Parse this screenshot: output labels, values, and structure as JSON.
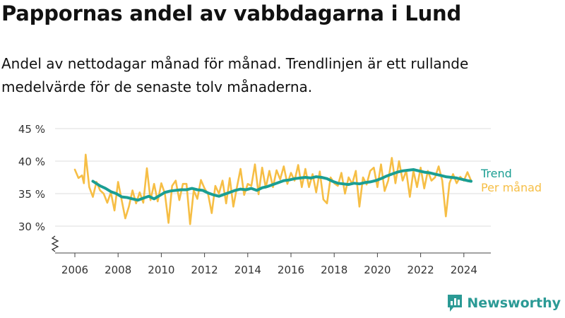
{
  "title": "Pappornas andel av vabbdagarna i Lund",
  "subtitle": "Andel av nettodagar månad för månad. Trendlinjen är ett rullande medelvärde för de senaste tolv månaderna.",
  "brand": "Newsworthy",
  "colors": {
    "monthly": "#f6be45",
    "trend": "#1a9e93",
    "grid": "#dddddd",
    "text": "#333333",
    "brand": "#2b9a95"
  },
  "chart_data": {
    "type": "line",
    "x_axis": {
      "ticks": [
        "2006",
        "2008",
        "2010",
        "2012",
        "2014",
        "2016",
        "2018",
        "2020",
        "2022",
        "2024"
      ]
    },
    "y_axis": {
      "ticks": [
        "30 %",
        "35 %",
        "40 %",
        "45 %"
      ],
      "range": [
        30,
        45
      ],
      "broken_axis": true
    },
    "grid": true,
    "legend": {
      "position": "right-end",
      "labels": [
        "Trend",
        "Per månad"
      ]
    },
    "series": [
      {
        "name": "Per månad",
        "x": [
          "2006-01",
          "2006-03",
          "2006-05",
          "2006-06",
          "2006-07",
          "2006-09",
          "2006-11",
          "2007-01",
          "2007-03",
          "2007-05",
          "2007-07",
          "2007-09",
          "2007-11",
          "2008-01",
          "2008-03",
          "2008-05",
          "2008-07",
          "2008-09",
          "2008-11",
          "2009-01",
          "2009-03",
          "2009-05",
          "2009-07",
          "2009-09",
          "2009-11",
          "2010-01",
          "2010-03",
          "2010-05",
          "2010-07",
          "2010-09",
          "2010-11",
          "2011-01",
          "2011-03",
          "2011-05",
          "2011-07",
          "2011-09",
          "2011-11",
          "2012-01",
          "2012-03",
          "2012-05",
          "2012-07",
          "2012-09",
          "2012-11",
          "2013-01",
          "2013-03",
          "2013-05",
          "2013-07",
          "2013-09",
          "2013-11",
          "2014-01",
          "2014-03",
          "2014-05",
          "2014-07",
          "2014-09",
          "2014-11",
          "2015-01",
          "2015-03",
          "2015-05",
          "2015-07",
          "2015-09",
          "2015-11",
          "2016-01",
          "2016-03",
          "2016-05",
          "2016-07",
          "2016-09",
          "2016-11",
          "2017-01",
          "2017-03",
          "2017-05",
          "2017-07",
          "2017-09",
          "2017-11",
          "2018-01",
          "2018-03",
          "2018-05",
          "2018-07",
          "2018-09",
          "2018-11",
          "2019-01",
          "2019-03",
          "2019-05",
          "2019-07",
          "2019-09",
          "2019-11",
          "2020-01",
          "2020-03",
          "2020-05",
          "2020-07",
          "2020-09",
          "2020-11",
          "2021-01",
          "2021-03",
          "2021-05",
          "2021-07",
          "2021-09",
          "2021-11",
          "2022-01",
          "2022-03",
          "2022-05",
          "2022-07",
          "2022-09",
          "2022-11",
          "2023-01",
          "2023-03",
          "2023-05",
          "2023-07",
          "2023-09",
          "2023-11",
          "2024-01",
          "2024-03",
          "2024-05"
        ],
        "values": [
          38.7,
          37.4,
          37.8,
          36.6,
          41.0,
          36.0,
          34.5,
          36.8,
          35.5,
          35.0,
          33.6,
          35.2,
          32.4,
          36.8,
          34.0,
          31.2,
          33.0,
          35.5,
          33.5,
          35.2,
          33.6,
          38.9,
          34.0,
          36.5,
          33.8,
          36.6,
          35.0,
          30.5,
          36.2,
          37.0,
          34.0,
          36.5,
          36.5,
          30.3,
          35.5,
          34.2,
          37.1,
          35.8,
          34.9,
          32.0,
          36.2,
          35.0,
          37.0,
          33.5,
          37.4,
          33.0,
          36.0,
          38.8,
          34.8,
          36.5,
          36.2,
          39.5,
          34.9,
          39.0,
          35.9,
          38.5,
          36.0,
          38.6,
          37.2,
          39.2,
          36.5,
          38.2,
          37.0,
          39.4,
          36.0,
          38.8,
          36.0,
          38.0,
          35.2,
          38.4,
          34.1,
          33.5,
          37.5,
          36.6,
          36.2,
          38.2,
          35.0,
          37.5,
          36.5,
          38.5,
          33.0,
          37.5,
          36.4,
          38.5,
          39.0,
          36.0,
          39.5,
          35.4,
          37.0,
          40.5,
          36.6,
          40.0,
          37.0,
          38.5,
          34.5,
          38.5,
          36.0,
          39.0,
          35.8,
          38.5,
          37.0,
          37.5,
          39.2,
          37.0,
          31.5,
          36.6,
          38.0,
          36.6,
          37.6,
          37.0,
          38.3,
          37.0
        ]
      },
      {
        "name": "Trend",
        "x": [
          "2006-11",
          "2007-03",
          "2007-06",
          "2007-09",
          "2007-12",
          "2008-03",
          "2008-06",
          "2008-09",
          "2008-12",
          "2009-03",
          "2009-06",
          "2009-09",
          "2009-12",
          "2010-03",
          "2010-06",
          "2010-09",
          "2010-12",
          "2011-03",
          "2011-06",
          "2011-09",
          "2011-12",
          "2012-03",
          "2012-06",
          "2012-09",
          "2012-12",
          "2013-03",
          "2013-06",
          "2013-09",
          "2013-12",
          "2014-03",
          "2014-06",
          "2014-09",
          "2014-12",
          "2015-03",
          "2015-06",
          "2015-09",
          "2015-12",
          "2016-03",
          "2016-06",
          "2016-09",
          "2016-12",
          "2017-03",
          "2017-06",
          "2017-09",
          "2017-12",
          "2018-03",
          "2018-06",
          "2018-09",
          "2018-12",
          "2019-03",
          "2019-06",
          "2019-09",
          "2019-12",
          "2020-03",
          "2020-06",
          "2020-09",
          "2020-12",
          "2021-03",
          "2021-06",
          "2021-09",
          "2021-12",
          "2022-03",
          "2022-06",
          "2022-09",
          "2022-12",
          "2023-03",
          "2023-06",
          "2023-09",
          "2023-12",
          "2024-03",
          "2024-05"
        ],
        "values": [
          36.9,
          36.2,
          35.8,
          35.3,
          35.0,
          34.5,
          34.4,
          34.2,
          34.0,
          34.3,
          34.6,
          34.2,
          34.7,
          35.2,
          35.4,
          35.5,
          35.6,
          35.6,
          35.8,
          35.6,
          35.5,
          35.1,
          34.8,
          34.6,
          34.9,
          35.2,
          35.5,
          35.7,
          35.6,
          35.8,
          35.5,
          35.9,
          36.1,
          36.4,
          36.7,
          37.0,
          37.1,
          37.3,
          37.4,
          37.5,
          37.4,
          37.6,
          37.5,
          37.3,
          36.9,
          36.6,
          36.5,
          36.4,
          36.6,
          36.5,
          36.7,
          36.8,
          37.0,
          37.3,
          37.7,
          38.0,
          38.3,
          38.5,
          38.6,
          38.7,
          38.5,
          38.3,
          38.2,
          38.0,
          37.8,
          37.6,
          37.5,
          37.4,
          37.2,
          37.0,
          36.9
        ]
      }
    ]
  }
}
